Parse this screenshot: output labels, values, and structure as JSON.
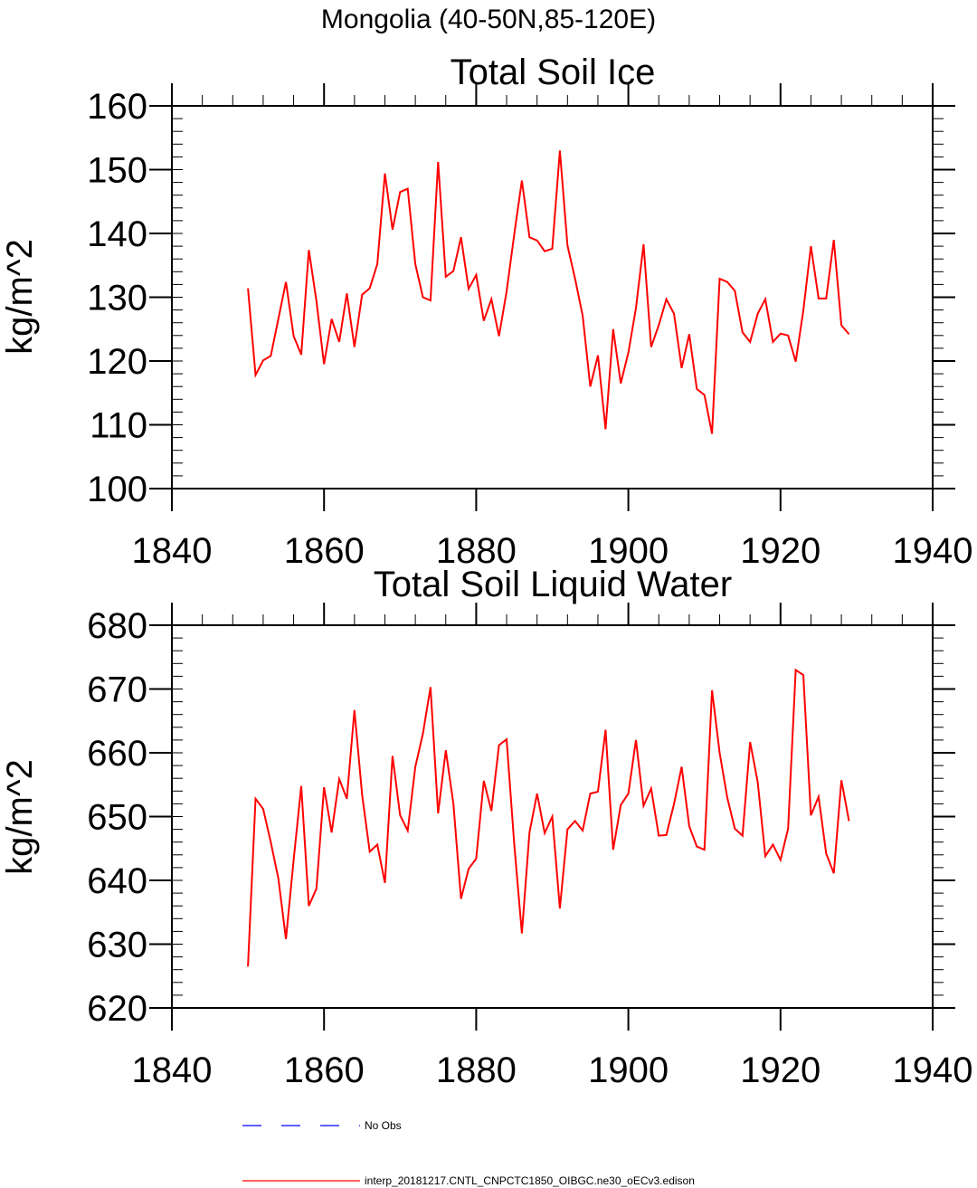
{
  "figure": {
    "suptitle": "Mongolia (40-50N,85-120E)",
    "legend": [
      {
        "label": "No Obs",
        "color": "#0000ff",
        "style": "dashed"
      },
      {
        "label": "interp_20181217.CNTL_CNPCTC1850_OIBGC.ne30_oECv3.edison",
        "color": "#ff0000",
        "style": "solid"
      }
    ]
  },
  "chart_data": [
    {
      "type": "line",
      "title": "Total Soil Ice",
      "xlabel": "",
      "ylabel": "kg/m^2",
      "xlim": [
        1840,
        1940
      ],
      "ylim": [
        100,
        160
      ],
      "xticks": [
        1840,
        1860,
        1880,
        1900,
        1920,
        1940
      ],
      "yticks": [
        100,
        110,
        120,
        130,
        140,
        150,
        160
      ],
      "color": "#ff0000",
      "x_start": 1850,
      "series": [
        {
          "name": "interp_20181217.CNTL_CNPCTC1850_OIBGC.ne30_oECv3.edison",
          "values": [
            131.4,
            117.8,
            120.1,
            120.8,
            126.6,
            132.4,
            123.9,
            121.0,
            137.4,
            129.4,
            119.5,
            126.6,
            123.0,
            130.6,
            122.2,
            130.4,
            131.4,
            135.2,
            149.4,
            140.6,
            146.5,
            147.0,
            135.2,
            130.0,
            129.5,
            151.2,
            133.2,
            134.1,
            139.4,
            131.3,
            133.5,
            126.3,
            129.7,
            123.9,
            130.9,
            139.9,
            148.3,
            139.4,
            138.9,
            137.2,
            137.6,
            153.0,
            138.1,
            132.9,
            127.1,
            116.0,
            120.9,
            109.3,
            125.0,
            116.5,
            121.3,
            128.3,
            138.3,
            122.2,
            125.6,
            129.7,
            127.4,
            118.9,
            124.2,
            115.6,
            114.7,
            108.6,
            132.9,
            132.4,
            131.0,
            124.5,
            123.0,
            127.4,
            129.7,
            123.0,
            124.3,
            124.0,
            119.9,
            127.9,
            138.0,
            129.8,
            129.8,
            139.0,
            125.6,
            124.2
          ]
        }
      ]
    },
    {
      "type": "line",
      "title": "Total Soil Liquid Water",
      "xlabel": "",
      "ylabel": "kg/m^2",
      "xlim": [
        1840,
        1940
      ],
      "ylim": [
        620,
        680
      ],
      "xticks": [
        1840,
        1860,
        1880,
        1900,
        1920,
        1940
      ],
      "yticks": [
        620,
        630,
        640,
        650,
        660,
        670,
        680
      ],
      "color": "#ff0000",
      "x_start": 1850,
      "series": [
        {
          "name": "interp_20181217.CNTL_CNPCTC1850_OIBGC.ne30_oECv3.edison",
          "values": [
            626.5,
            652.8,
            651.2,
            646.0,
            640.3,
            630.8,
            643.2,
            654.8,
            636.0,
            638.7,
            654.6,
            647.5,
            655.9,
            652.8,
            666.7,
            653.4,
            644.5,
            645.6,
            639.6,
            659.5,
            650.2,
            647.8,
            657.8,
            663.0,
            670.3,
            650.5,
            660.4,
            652.0,
            637.1,
            641.8,
            643.4,
            655.6,
            650.9,
            661.2,
            662.1,
            645.6,
            631.7,
            647.5,
            653.6,
            647.4,
            650.0,
            635.6,
            648.0,
            649.3,
            647.8,
            653.6,
            653.9,
            663.6,
            644.8,
            651.8,
            653.6,
            662.0,
            651.7,
            654.4,
            647.0,
            647.1,
            652.0,
            657.8,
            648.5,
            645.3,
            644.8,
            669.8,
            660.0,
            653.0,
            648.1,
            647.0,
            661.7,
            655.4,
            643.8,
            645.6,
            643.2,
            648.1,
            673.0,
            672.2,
            650.2,
            653.1,
            644.2,
            641.1,
            655.7,
            649.3
          ]
        }
      ]
    }
  ]
}
